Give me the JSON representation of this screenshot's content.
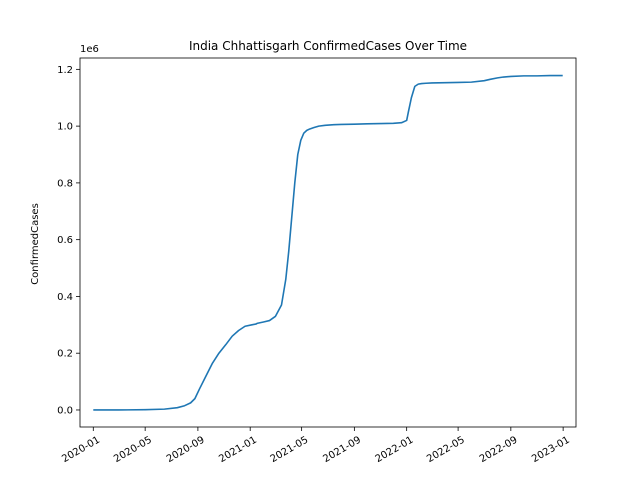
{
  "chart_data": {
    "type": "line",
    "title": "India Chhattisgarh ConfirmedCases Over Time",
    "xlabel": "",
    "ylabel": "ConfirmedCases",
    "y_offset_label": "1e6",
    "xlim": [
      "2019-12-01",
      "2023-01-31"
    ],
    "ylim": [
      -0.06,
      1.24
    ],
    "y_scale": "1e6",
    "x_ticks": [
      "2020-01",
      "2020-05",
      "2020-09",
      "2021-01",
      "2021-05",
      "2021-09",
      "2022-01",
      "2022-05",
      "2022-09",
      "2023-01"
    ],
    "y_ticks": [
      "0.0",
      "0.2",
      "0.4",
      "0.6",
      "0.8",
      "1.0",
      "1.2"
    ],
    "grid": false,
    "line_color": "#1f77b4",
    "series": [
      {
        "x": [
          "2020-01-01",
          "2020-03-01",
          "2020-05-01",
          "2020-06-15",
          "2020-07-15",
          "2020-08-01",
          "2020-08-15",
          "2020-08-25",
          "2020-09-05",
          "2020-09-20",
          "2020-10-05",
          "2020-10-20",
          "2020-11-05",
          "2020-11-20",
          "2020-12-05",
          "2020-12-20",
          "2021-01-05",
          "2021-01-15",
          "2021-01-17",
          "2021-02-01",
          "2021-02-15",
          "2021-03-01",
          "2021-03-15",
          "2021-03-25",
          "2021-04-01",
          "2021-04-08",
          "2021-04-15",
          "2021-04-22",
          "2021-04-29",
          "2021-05-06",
          "2021-05-13",
          "2021-05-20",
          "2021-05-30",
          "2021-06-10",
          "2021-06-25",
          "2021-07-15",
          "2021-08-01",
          "2021-09-01",
          "2021-10-01",
          "2021-11-01",
          "2021-12-01",
          "2021-12-20",
          "2022-01-01",
          "2022-01-05",
          "2022-01-12",
          "2022-01-20",
          "2022-01-28",
          "2022-02-05",
          "2022-02-15",
          "2022-03-01",
          "2022-04-01",
          "2022-05-01",
          "2022-06-01",
          "2022-07-01",
          "2022-07-15",
          "2022-08-01",
          "2022-08-15",
          "2022-09-01",
          "2022-10-01",
          "2022-11-01",
          "2022-12-01",
          "2022-12-31"
        ],
        "y": [
          0,
          0,
          0.001,
          0.003,
          0.008,
          0.015,
          0.025,
          0.04,
          0.075,
          0.12,
          0.165,
          0.2,
          0.23,
          0.26,
          0.28,
          0.295,
          0.3,
          0.303,
          0.305,
          0.31,
          0.315,
          0.33,
          0.37,
          0.46,
          0.56,
          0.68,
          0.8,
          0.9,
          0.95,
          0.975,
          0.985,
          0.99,
          0.995,
          1.0,
          1.003,
          1.005,
          1.006,
          1.007,
          1.008,
          1.009,
          1.01,
          1.012,
          1.02,
          1.05,
          1.1,
          1.14,
          1.148,
          1.15,
          1.151,
          1.152,
          1.153,
          1.154,
          1.155,
          1.16,
          1.165,
          1.17,
          1.173,
          1.175,
          1.177,
          1.177,
          1.178,
          1.178
        ]
      }
    ]
  }
}
